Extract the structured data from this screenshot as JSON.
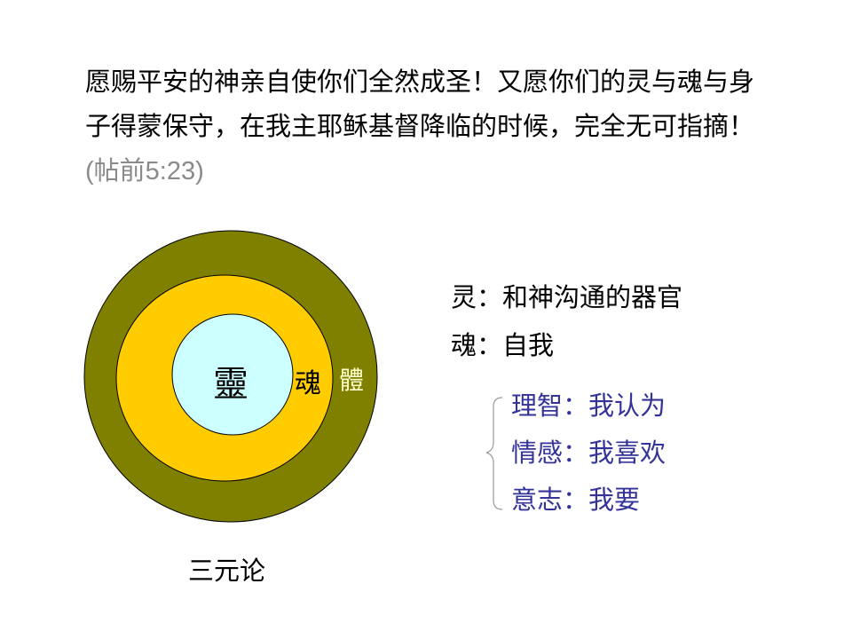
{
  "verse": {
    "text": "愿赐平安的神亲自使你们全然成圣！又愿你们的灵与魂与身子得蒙保守，在我主耶稣基督降临的时候，完全无可指摘！",
    "reference": "(帖前5:23)"
  },
  "diagram": {
    "rings": [
      {
        "label": "體",
        "color": "#808000",
        "label_color": "#ffffcc"
      },
      {
        "label": "魂",
        "color": "#ffcc00",
        "label_color": "#000000"
      },
      {
        "label": "靈",
        "color": "#ccffff",
        "label_color": "#000000"
      }
    ],
    "caption": "三元论"
  },
  "definitions": [
    {
      "term": "灵",
      "sep": "：",
      "meaning": "和神沟通的器官"
    },
    {
      "term": "魂",
      "sep": "：",
      "meaning": "自我"
    }
  ],
  "soul_parts": {
    "color": "#333399",
    "items": [
      {
        "term": "理智",
        "sep": "：",
        "meaning": "我认为"
      },
      {
        "term": "情感",
        "sep": "：",
        "meaning": "我喜欢"
      },
      {
        "term": "意志",
        "sep": "：",
        "meaning": "我要"
      }
    ]
  }
}
